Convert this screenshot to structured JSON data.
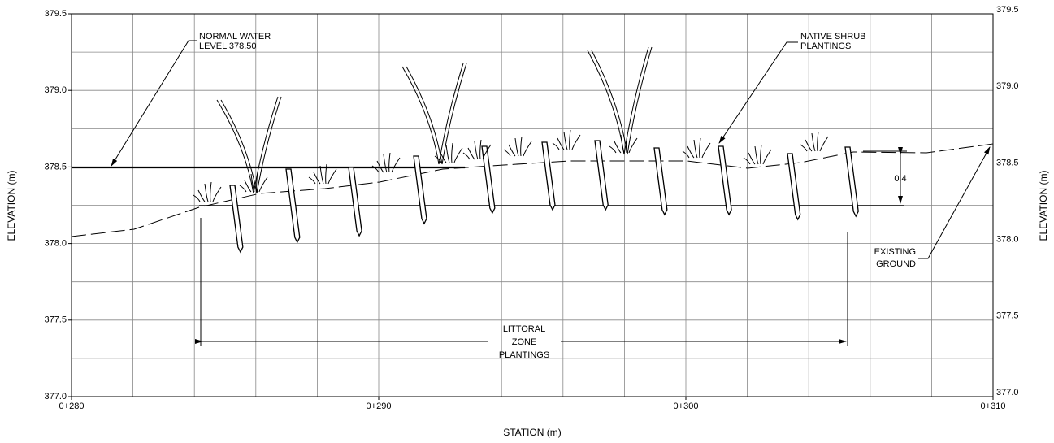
{
  "axes": {
    "y_label": "ELEVATION (m)",
    "x_label": "STATION (m)",
    "xlim": [
      280,
      310
    ],
    "ylim": [
      377,
      379.5
    ],
    "xticks": [
      {
        "value": 280,
        "label": "0+280"
      },
      {
        "value": 290,
        "label": "0+290"
      },
      {
        "value": 300,
        "label": "0+300"
      },
      {
        "value": 310,
        "label": "0+310"
      }
    ],
    "yticks": [
      {
        "value": 377,
        "label": "377.0"
      },
      377.5,
      {
        "value": 378,
        "label": "378.0"
      },
      378.5,
      {
        "value": 379,
        "label": "379.0"
      },
      379.5
    ],
    "xgrid_step": 2,
    "ygrid_step": 0.25
  },
  "annotations": {
    "normal_water": [
      "NORMAL WATER",
      "LEVEL 378.50"
    ],
    "native_shrub": [
      "NATIVE SHRUB",
      "PLANTINGS"
    ],
    "existing_ground": [
      "EXISTING",
      "GROUND"
    ],
    "littoral": [
      "LITTORAL",
      "ZONE",
      "PLANTINGS"
    ],
    "dimension": "0.4"
  }
}
